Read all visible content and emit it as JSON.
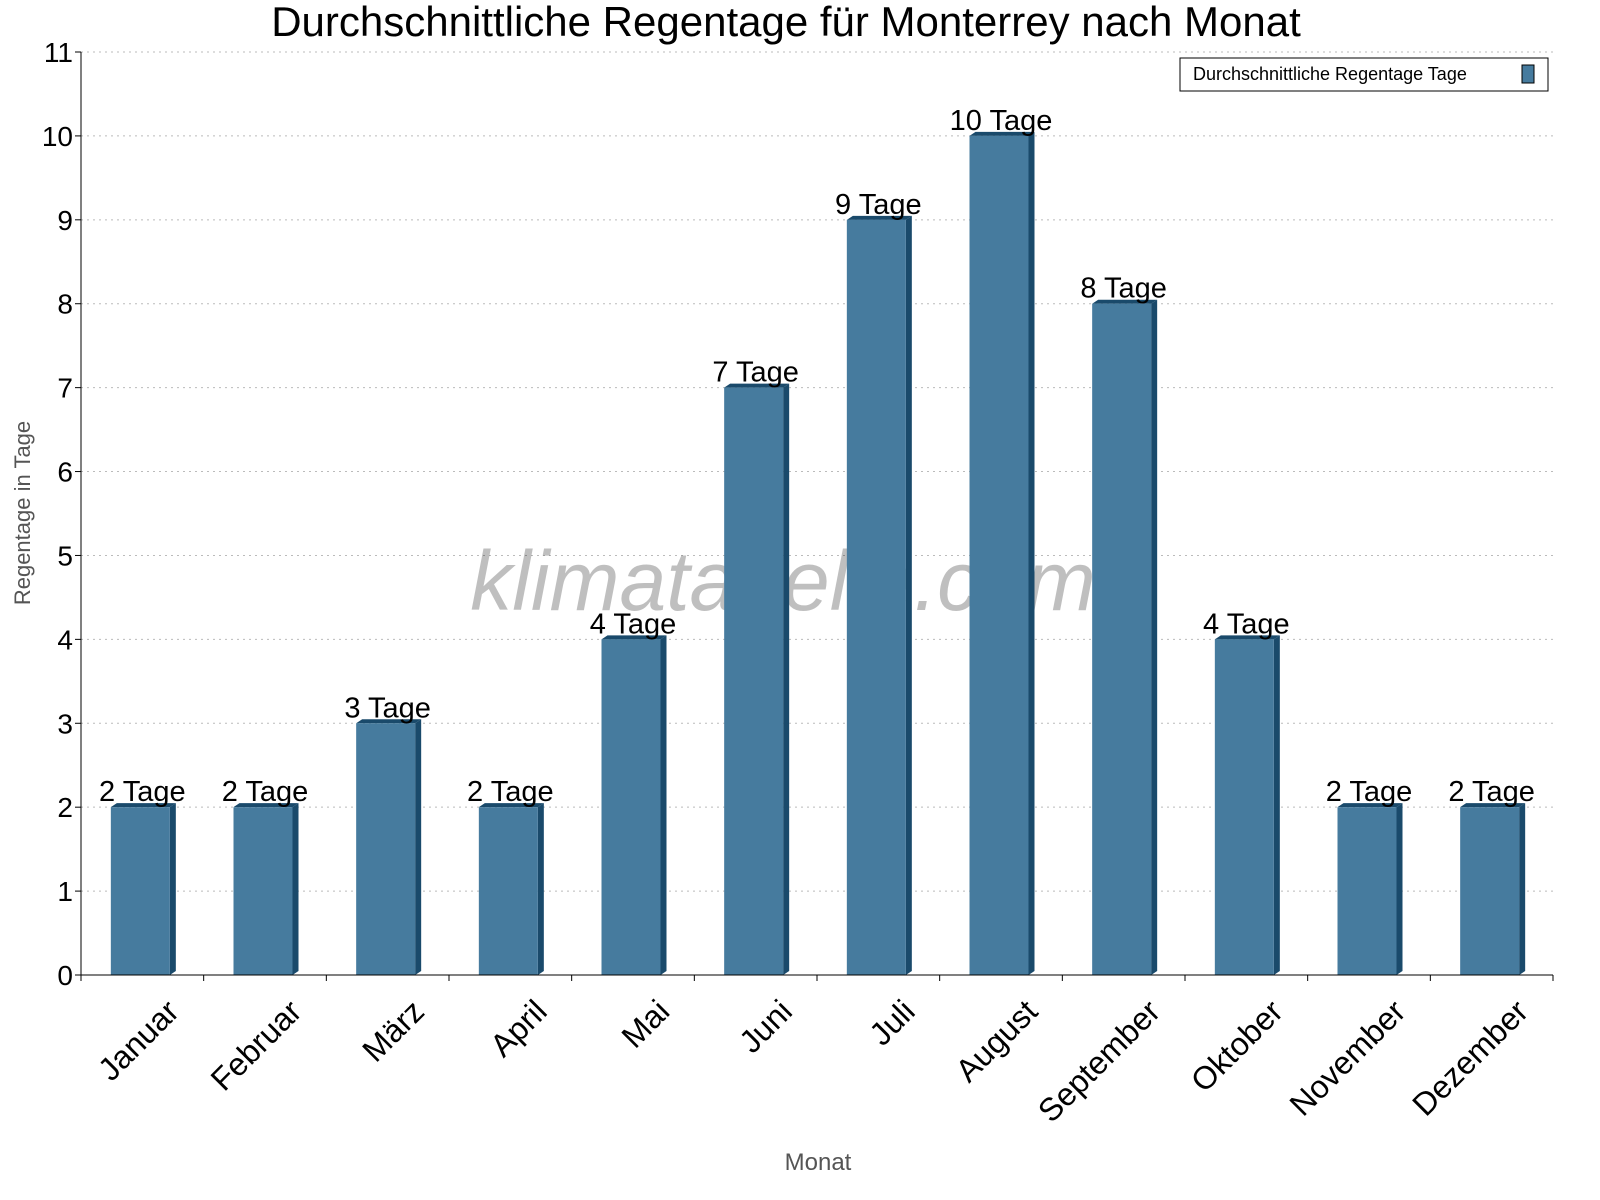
{
  "chart_data": {
    "type": "bar",
    "title": "Durchschnittliche Regentage für Monterrey nach Monat",
    "xlabel": "Monat",
    "ylabel": "Regentage in Tage",
    "categories": [
      "Januar",
      "Februar",
      "März",
      "April",
      "Mai",
      "Juni",
      "Juli",
      "August",
      "September",
      "Oktober",
      "November",
      "Dezember"
    ],
    "series": [
      {
        "name": "Durchschnittliche Regentage Tage",
        "values": [
          2,
          2,
          3,
          2,
          4,
          7,
          9,
          10,
          8,
          4,
          2,
          2
        ],
        "color": "#467b9e",
        "shade_color": "#1a4a6b"
      }
    ],
    "data_label_suffix": " Tage",
    "ylim": [
      0,
      11
    ],
    "yticks": [
      0,
      1,
      2,
      3,
      4,
      5,
      6,
      7,
      8,
      9,
      10,
      11
    ],
    "grid": true,
    "legend": "top-right",
    "watermark": "klimatabelle.com"
  }
}
